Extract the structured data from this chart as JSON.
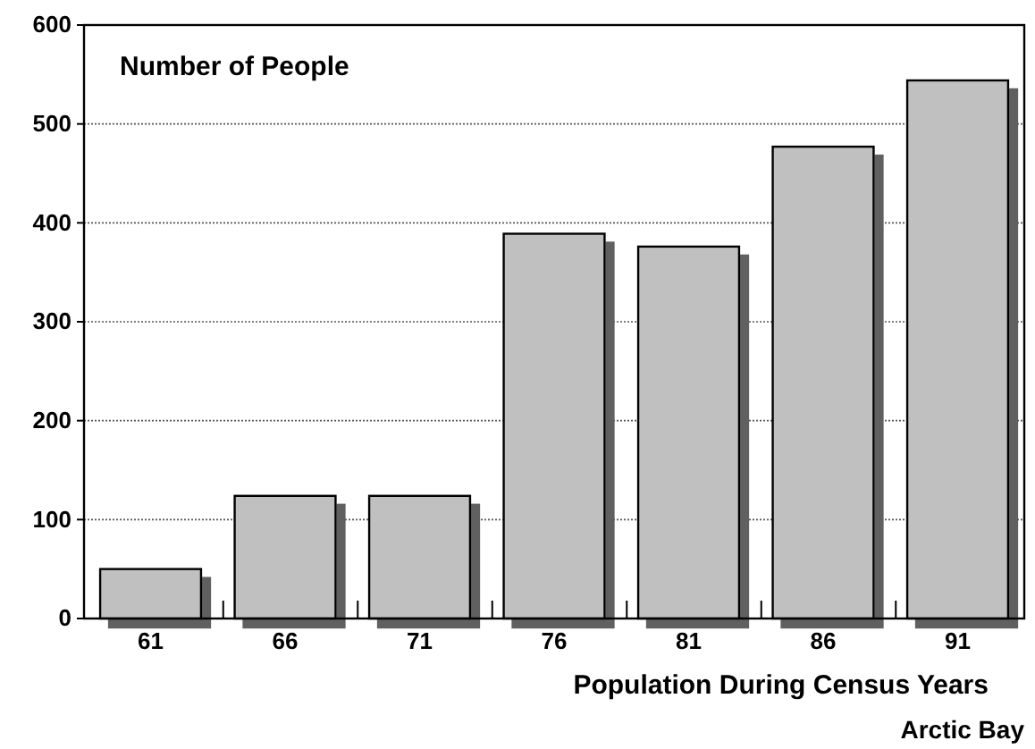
{
  "chart_data": {
    "type": "bar",
    "title": "Number of People",
    "xlabel": "Population During Census Years",
    "annotations": [
      "Arctic Bay"
    ],
    "categories": [
      "61",
      "66",
      "71",
      "76",
      "81",
      "86",
      "91"
    ],
    "values": [
      50,
      124,
      124,
      389,
      376,
      477,
      544
    ],
    "color": "#c0c0c0",
    "ylim": [
      0,
      600
    ],
    "yticks": [
      0,
      100,
      200,
      300,
      400,
      500,
      600
    ],
    "grid": "y"
  }
}
